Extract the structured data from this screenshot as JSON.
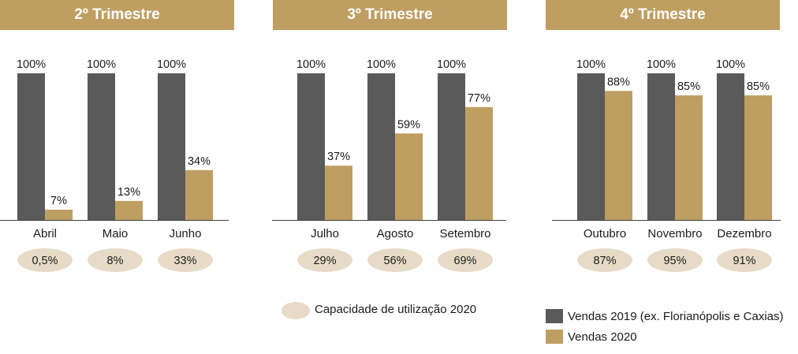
{
  "colors": {
    "header_bg": "#bf9e62",
    "vendas_2019": "#5a5a5a",
    "vendas_2020": "#bf9e62",
    "capacidade_ellipse": "#e7dbc7",
    "axis_line": "#404040"
  },
  "quarters": [
    {
      "label": "2º Trimestre"
    },
    {
      "label": "3º Trimestre"
    },
    {
      "label": "4º Trimestre"
    }
  ],
  "chart_data": {
    "type": "bar",
    "categories": [
      "Abril",
      "Maio",
      "Junho",
      "Julho",
      "Agosto",
      "Setembro",
      "Outubro",
      "Novembro",
      "Dezembro"
    ],
    "series": [
      {
        "name": "Vendas 2019 (ex. Florianópolis e Caxias)",
        "values": [
          100,
          100,
          100,
          100,
          100,
          100,
          100,
          100,
          100
        ]
      },
      {
        "name": "Vendas 2020",
        "values": [
          7,
          13,
          34,
          37,
          59,
          77,
          88,
          85,
          85
        ]
      }
    ],
    "data_labels": [
      [
        "100%",
        "100%",
        "100%",
        "100%",
        "100%",
        "100%",
        "100%",
        "100%",
        "100%"
      ],
      [
        "7%",
        "13%",
        "34%",
        "37%",
        "59%",
        "77%",
        "88%",
        "85%",
        "85%"
      ]
    ],
    "capacity": {
      "name": "Capacidade de utilização 2020",
      "labels": [
        "0,5%",
        "8%",
        "33%",
        "29%",
        "56%",
        "69%",
        "87%",
        "95%",
        "91%"
      ]
    },
    "ylim": [
      0,
      100
    ],
    "grid": false,
    "legend_position": "bottom"
  },
  "legend": {
    "capacidade_label": "Capacidade  de utilização 2020",
    "series_2019_label": "Vendas 2019 (ex. Florianópolis e Caxias)",
    "series_2020_label": "Vendas 2020"
  }
}
